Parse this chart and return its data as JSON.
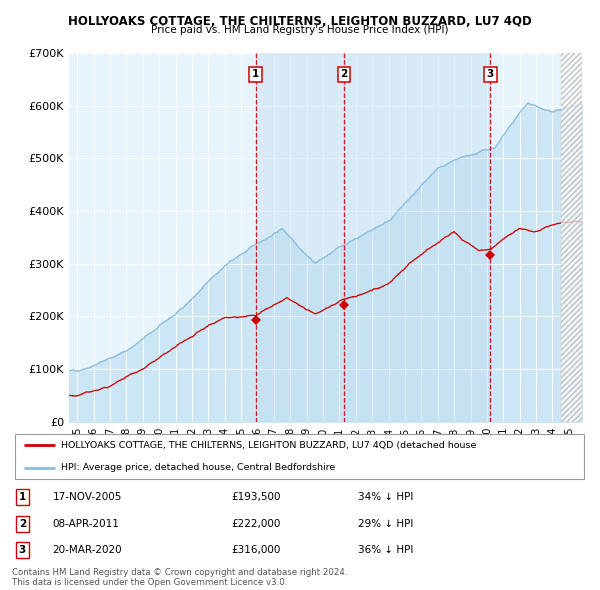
{
  "title": "HOLLYOAKS COTTAGE, THE CHILTERNS, LEIGHTON BUZZARD, LU7 4QD",
  "subtitle": "Price paid vs. HM Land Registry's House Price Index (HPI)",
  "hpi_color": "#88bbdd",
  "hpi_fill_color": "#ddeef8",
  "price_color": "#cc0000",
  "chart_bg": "#e8f4fb",
  "sale_dates_num": [
    2005.88,
    2011.27,
    2020.21
  ],
  "sale_prices": [
    193500,
    222000,
    316000
  ],
  "sale_labels": [
    "1",
    "2",
    "3"
  ],
  "sale_date_strings": [
    "17-NOV-2005",
    "08-APR-2011",
    "20-MAR-2020"
  ],
  "sale_price_strings": [
    "£193,500",
    "£222,000",
    "£316,000"
  ],
  "sale_hpi_strings": [
    "34% ↓ HPI",
    "29% ↓ HPI",
    "36% ↓ HPI"
  ],
  "legend_line1": "HOLLYOAKS COTTAGE, THE CHILTERNS, LEIGHTON BUZZARD, LU7 4QD (detached house",
  "legend_line2": "HPI: Average price, detached house, Central Bedfordshire",
  "footer1": "Contains HM Land Registry data © Crown copyright and database right 2024.",
  "footer2": "This data is licensed under the Open Government Licence v3.0.",
  "ylim": [
    0,
    700000
  ],
  "yticks": [
    0,
    100000,
    200000,
    300000,
    400000,
    500000,
    600000,
    700000
  ],
  "ytick_labels": [
    "£0",
    "£100K",
    "£200K",
    "£300K",
    "£400K",
    "£500K",
    "£600K",
    "£700K"
  ],
  "xlim_start": 1994.5,
  "xlim_end": 2025.8,
  "xticks": [
    1995,
    1996,
    1997,
    1998,
    1999,
    2000,
    2001,
    2002,
    2003,
    2004,
    2005,
    2006,
    2007,
    2008,
    2009,
    2010,
    2011,
    2012,
    2013,
    2014,
    2015,
    2016,
    2017,
    2018,
    2019,
    2020,
    2021,
    2022,
    2023,
    2024,
    2025
  ]
}
